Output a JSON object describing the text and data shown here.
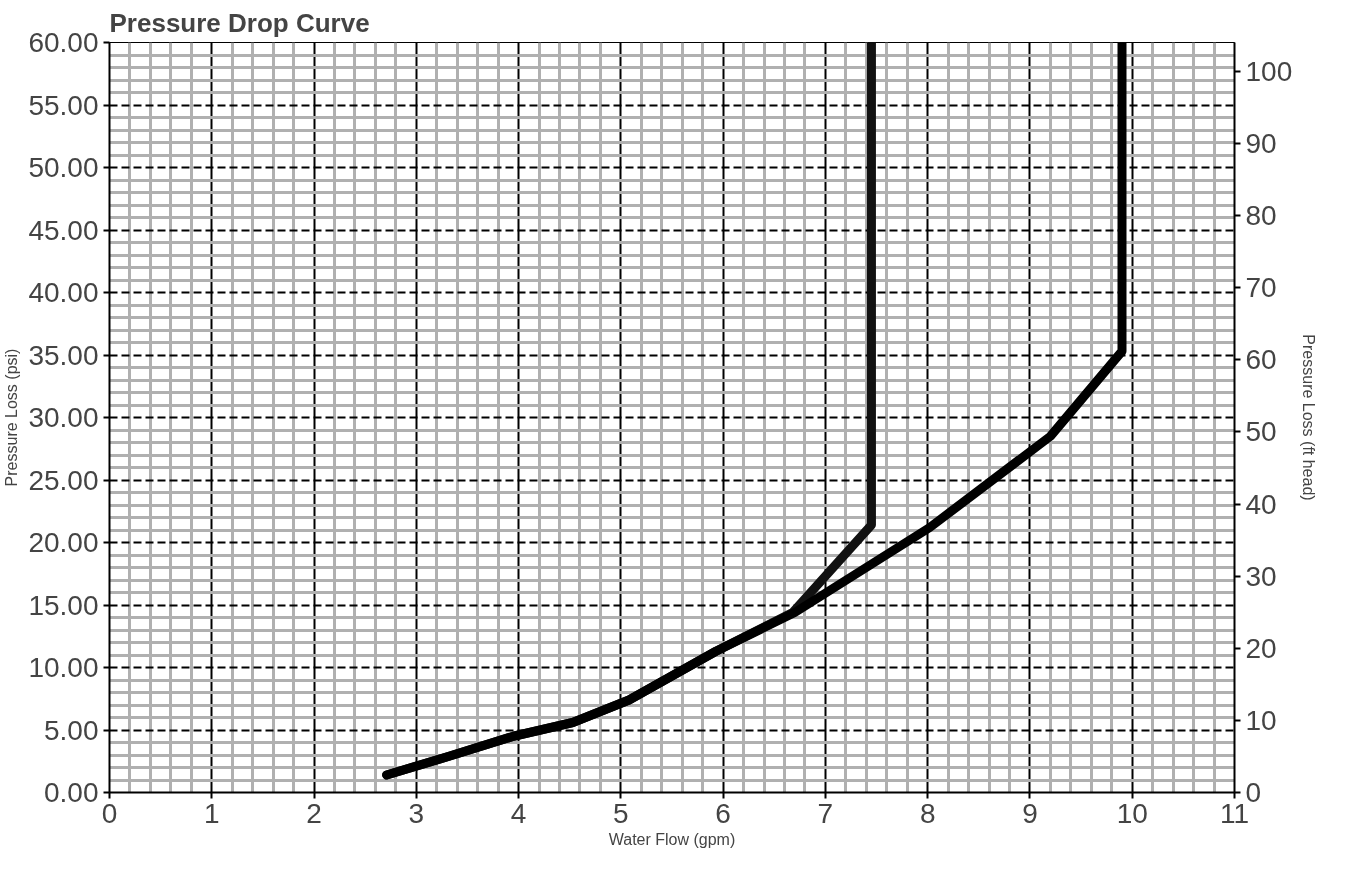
{
  "chart_data": {
    "type": "line",
    "title": "Pressure Drop Curve",
    "xlabel": "Water Flow (gpm)",
    "ylabel": "Pressure Loss (psi)",
    "y2label": "Pressure Loss (ft head)",
    "xlim": [
      0,
      11
    ],
    "xticks": [
      0,
      1,
      2,
      3,
      4,
      5,
      6,
      7,
      8,
      9,
      10,
      11
    ],
    "ylim": [
      0,
      60
    ],
    "yticks": [
      {
        "value": 0,
        "label": "0.00"
      },
      {
        "value": 5,
        "label": "5.00"
      },
      {
        "value": 10,
        "label": "10.00"
      },
      {
        "value": 15,
        "label": "15.00"
      },
      {
        "value": 20,
        "label": "20.00"
      },
      {
        "value": 25,
        "label": "25.00"
      },
      {
        "value": 30,
        "label": "30.00"
      },
      {
        "value": 35,
        "label": "35.00"
      },
      {
        "value": 40,
        "label": "40.00"
      },
      {
        "value": 45,
        "label": "45.00"
      },
      {
        "value": 50,
        "label": "50.00"
      },
      {
        "value": 55,
        "label": "55.00"
      },
      {
        "value": 60,
        "label": "60.00"
      }
    ],
    "y2lim": [
      0,
      104
    ],
    "y2ticks": [
      0,
      10,
      20,
      30,
      40,
      50,
      60,
      70,
      80,
      90,
      100
    ],
    "grid": true,
    "marker": "none",
    "line_style": "solid",
    "series": [
      {
        "color": "#111111",
        "x": [
          2.71,
          3.32,
          3.95,
          4.53,
          5.08,
          5.93,
          6.68,
          7.45,
          7.45
        ],
        "values": [
          1.4,
          2.9,
          4.5,
          5.6,
          7.4,
          11.3,
          14.4,
          21.4,
          60
        ]
      },
      {
        "color": "#000000",
        "x": [
          2.71,
          3.32,
          3.95,
          4.53,
          5.08,
          5.93,
          6.7,
          8.02,
          9.2,
          9.9,
          9.9
        ],
        "values": [
          1.4,
          2.9,
          4.5,
          5.6,
          7.4,
          11.3,
          14.4,
          21.2,
          28.5,
          35.3,
          60
        ]
      }
    ]
  }
}
